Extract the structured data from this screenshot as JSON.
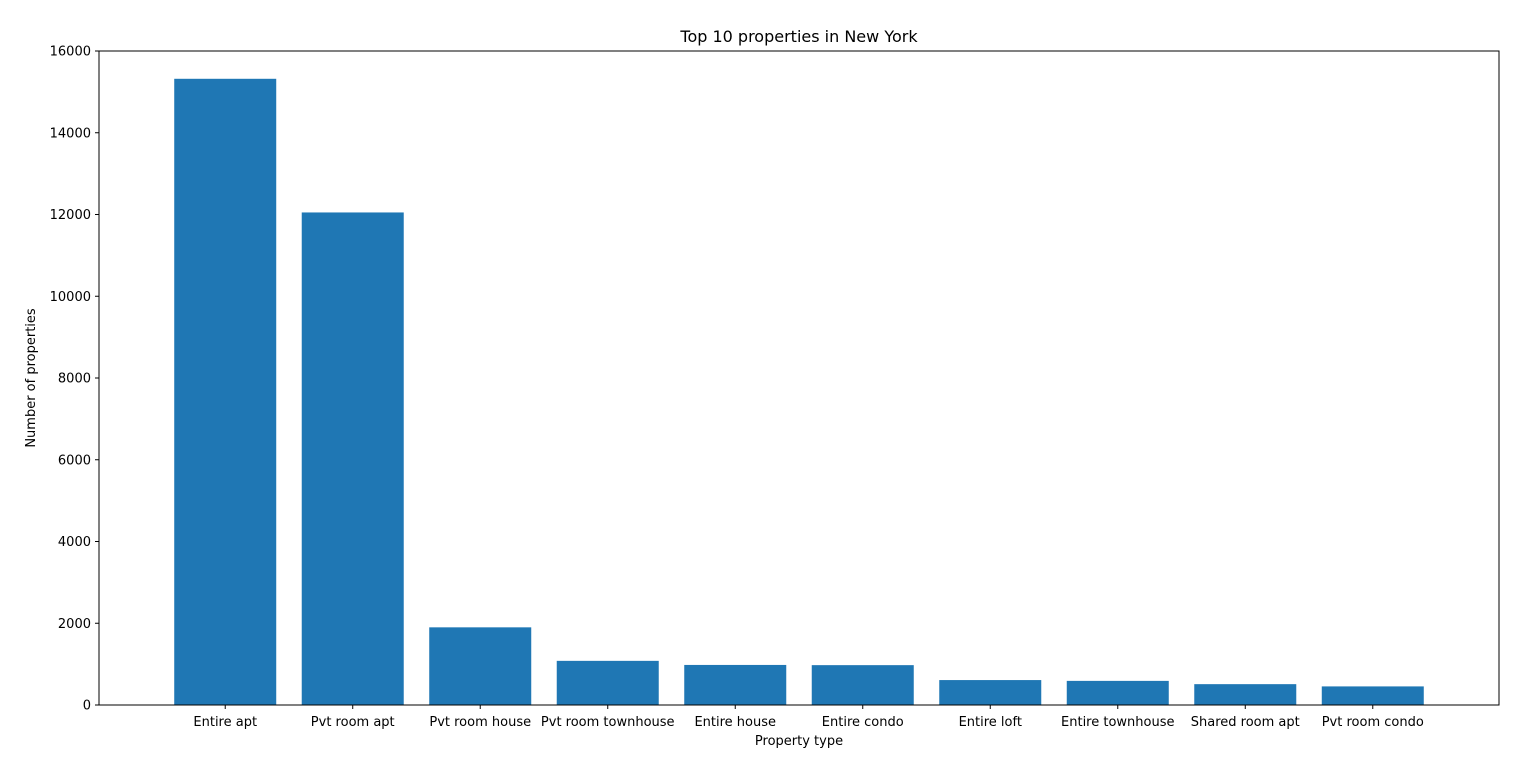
{
  "chart_data": {
    "type": "bar",
    "title": "Top 10 properties in New York",
    "xlabel": "Property type",
    "ylabel": "Number of properties",
    "categories": [
      "Entire apt",
      "Pvt room apt",
      "Pvt room house",
      "Pvt room townhouse",
      "Entire house",
      "Entire condo",
      "Entire loft",
      "Entire townhouse",
      "Shared room apt",
      "Pvt room condo"
    ],
    "values": [
      15320,
      12050,
      1900,
      1080,
      980,
      975,
      610,
      590,
      510,
      455
    ],
    "ylim": [
      0,
      16000
    ],
    "yticks": [
      0,
      2000,
      4000,
      6000,
      8000,
      10000,
      12000,
      14000,
      16000
    ],
    "grid": false,
    "legend": "none",
    "bar_color": "#1f77b4"
  }
}
